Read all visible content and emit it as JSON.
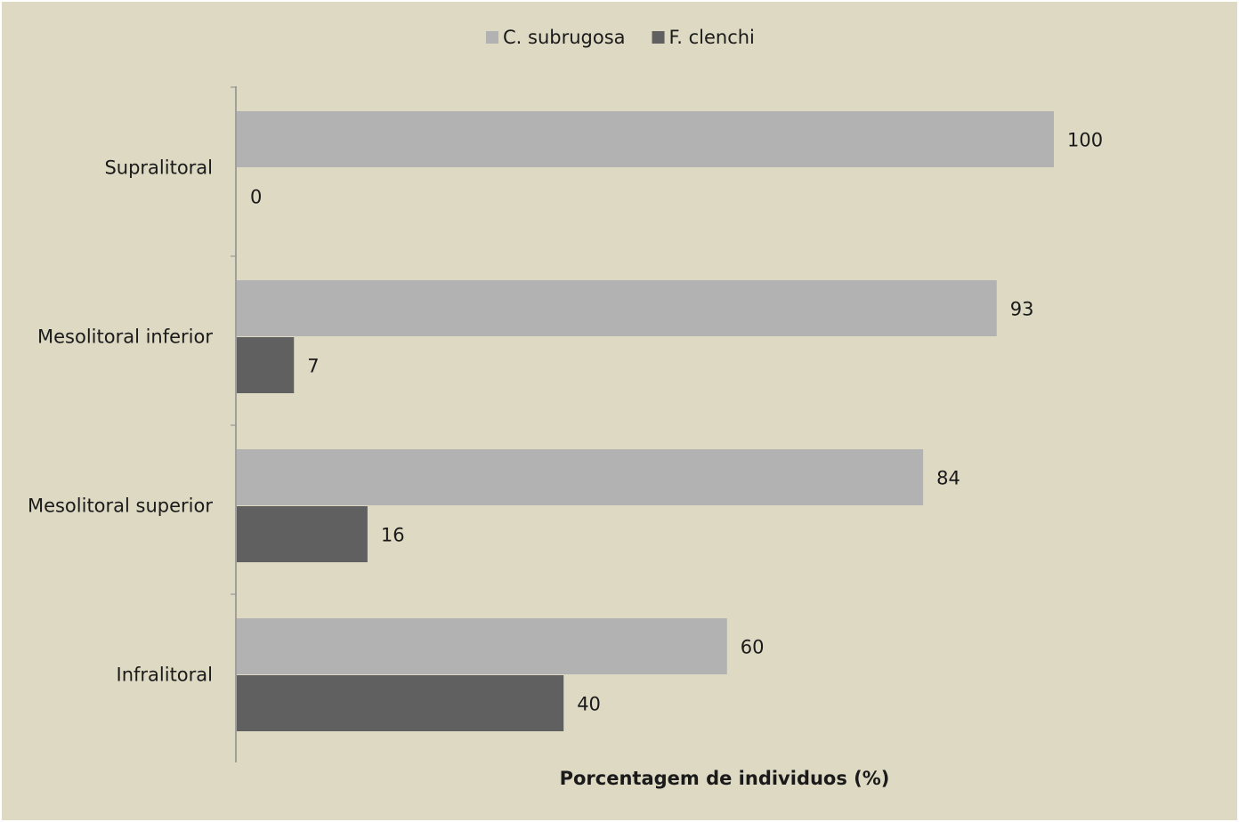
{
  "chart_data": {
    "type": "bar",
    "orientation": "horizontal",
    "categories": [
      "Supralitoral",
      "Mesolitoral inferior",
      "Mesolitoral superior",
      "Infralitoral"
    ],
    "series": [
      {
        "name": "C. subrugosa",
        "values": [
          100,
          93,
          84,
          60
        ],
        "color": "#b2b2b2"
      },
      {
        "name": "F. clenchi",
        "values": [
          0,
          7,
          16,
          40
        ],
        "color": "#606060"
      }
    ],
    "xlabel": "Porcentagem de individuos (%)",
    "ylabel": "",
    "xlim": [
      0,
      120
    ],
    "grid": false,
    "legend_position": "top-center",
    "data_labels": true
  },
  "colors": {
    "background": "#ddd9c3",
    "axis": "#8c8c8c",
    "text": "#1a1a1a"
  }
}
